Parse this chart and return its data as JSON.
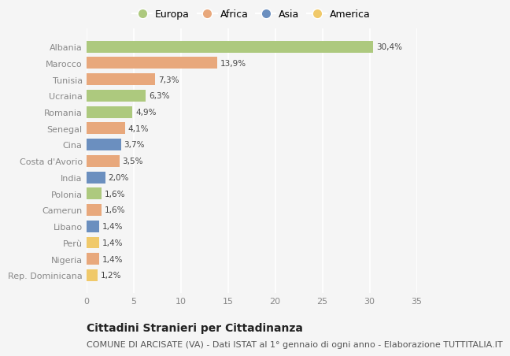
{
  "countries": [
    "Albania",
    "Marocco",
    "Tunisia",
    "Ucraina",
    "Romania",
    "Senegal",
    "Cina",
    "Costa d'Avorio",
    "India",
    "Polonia",
    "Camerun",
    "Libano",
    "Perù",
    "Nigeria",
    "Rep. Dominicana"
  ],
  "values": [
    30.4,
    13.9,
    7.3,
    6.3,
    4.9,
    4.1,
    3.7,
    3.5,
    2.0,
    1.6,
    1.6,
    1.4,
    1.4,
    1.4,
    1.2
  ],
  "labels": [
    "30,4%",
    "13,9%",
    "7,3%",
    "6,3%",
    "4,9%",
    "4,1%",
    "3,7%",
    "3,5%",
    "2,0%",
    "1,6%",
    "1,6%",
    "1,4%",
    "1,4%",
    "1,4%",
    "1,2%"
  ],
  "continents": [
    "Europa",
    "Africa",
    "Africa",
    "Europa",
    "Europa",
    "Africa",
    "Asia",
    "Africa",
    "Asia",
    "Europa",
    "Africa",
    "Asia",
    "America",
    "Africa",
    "America"
  ],
  "continent_colors": {
    "Europa": "#adc97e",
    "Africa": "#e8a87c",
    "Asia": "#6b8fbf",
    "America": "#f0c96a"
  },
  "legend_order": [
    "Europa",
    "Africa",
    "Asia",
    "America"
  ],
  "xlim": [
    0,
    35
  ],
  "xticks": [
    0,
    5,
    10,
    15,
    20,
    25,
    30,
    35
  ],
  "background_color": "#f5f5f5",
  "title": "Cittadini Stranieri per Cittadinanza",
  "subtitle": "COMUNE DI ARCISATE (VA) - Dati ISTAT al 1° gennaio di ogni anno - Elaborazione TUTTITALIA.IT",
  "title_fontsize": 10,
  "subtitle_fontsize": 8,
  "bar_height": 0.72
}
